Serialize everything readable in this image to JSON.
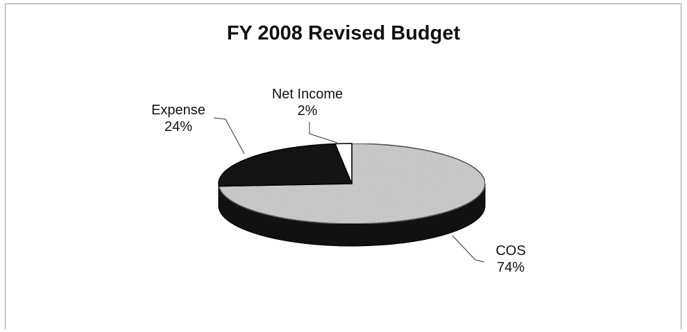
{
  "chart_data": {
    "type": "pie",
    "title": "FY 2008 Revised Budget",
    "style": "3d",
    "slices": [
      {
        "label": "COS",
        "value": 74,
        "value_label": "74%",
        "color": "#c9c9c9"
      },
      {
        "label": "Expense",
        "value": 24,
        "value_label": "24%",
        "color": "#141414"
      },
      {
        "label": "Net Income",
        "value": 2,
        "value_label": "2%",
        "color": "#ffffff"
      }
    ]
  }
}
